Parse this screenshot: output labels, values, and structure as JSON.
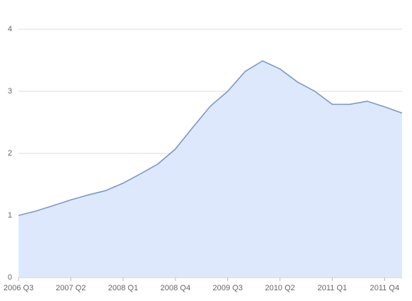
{
  "chart_data": {
    "type": "area",
    "categories": [
      "2006 Q3",
      null,
      null,
      "2007 Q2",
      null,
      null,
      "2008 Q1",
      null,
      null,
      "2008 Q4",
      null,
      null,
      "2009 Q3",
      null,
      null,
      "2010 Q2",
      null,
      null,
      "2011 Q1",
      null,
      null,
      "2011 Q4",
      null
    ],
    "values": [
      1.0,
      1.07,
      1.16,
      1.25,
      1.33,
      1.4,
      1.52,
      1.67,
      1.83,
      2.07,
      2.42,
      2.76,
      3.0,
      3.32,
      3.49,
      3.36,
      3.15,
      3.0,
      2.79,
      2.79,
      2.84,
      2.75,
      2.65
    ],
    "color": "#7f98c8",
    "fill": "#dde8fc",
    "ylim": [
      0,
      4
    ],
    "yticks": [
      0,
      1,
      2,
      3,
      4
    ],
    "grid": true
  }
}
